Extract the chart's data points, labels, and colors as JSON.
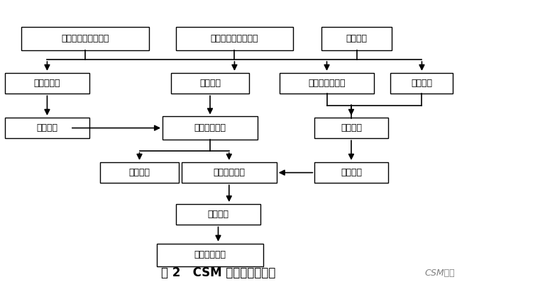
{
  "title": "图 2   CSM 施工工艺流程图",
  "watermark": "CSM工法",
  "background": "#ffffff",
  "boxes": {
    "测量胶线、开挖导槽": [
      0.13,
      0.88,
      0.22,
      0.082
    ],
    "主机日常检查、预热": [
      0.4,
      0.88,
      0.22,
      0.082
    ],
    "铺设基板": [
      0.635,
      0.88,
      0.13,
      0.082
    ],
    "空气压缩机": [
      0.05,
      0.7,
      0.16,
      0.075
    ],
    "设备对位": [
      0.335,
      0.7,
      0.14,
      0.075
    ],
    "水量、灰量计量": [
      0.565,
      0.7,
      0.175,
      0.075
    ],
    "后盘检查": [
      0.755,
      0.7,
      0.13,
      0.075
    ],
    "高压空气": [
      0.05,
      0.545,
      0.155,
      0.075
    ],
    "带水切削下沉": [
      0.305,
      0.545,
      0.175,
      0.075
    ],
    "浆渣配置": [
      0.61,
      0.545,
      0.135,
      0.075
    ],
    "泥浆排放": [
      0.19,
      0.385,
      0.14,
      0.075
    ],
    "搅拌提升喷浆": [
      0.345,
      0.385,
      0.175,
      0.075
    ],
    "泵送浆液": [
      0.61,
      0.385,
      0.135,
      0.075
    ],
    "设备移位": [
      0.345,
      0.235,
      0.155,
      0.075
    ],
    "打下一组槽段": [
      0.32,
      0.09,
      0.195,
      0.075
    ]
  },
  "fontsize": 9,
  "title_fontsize": 12
}
